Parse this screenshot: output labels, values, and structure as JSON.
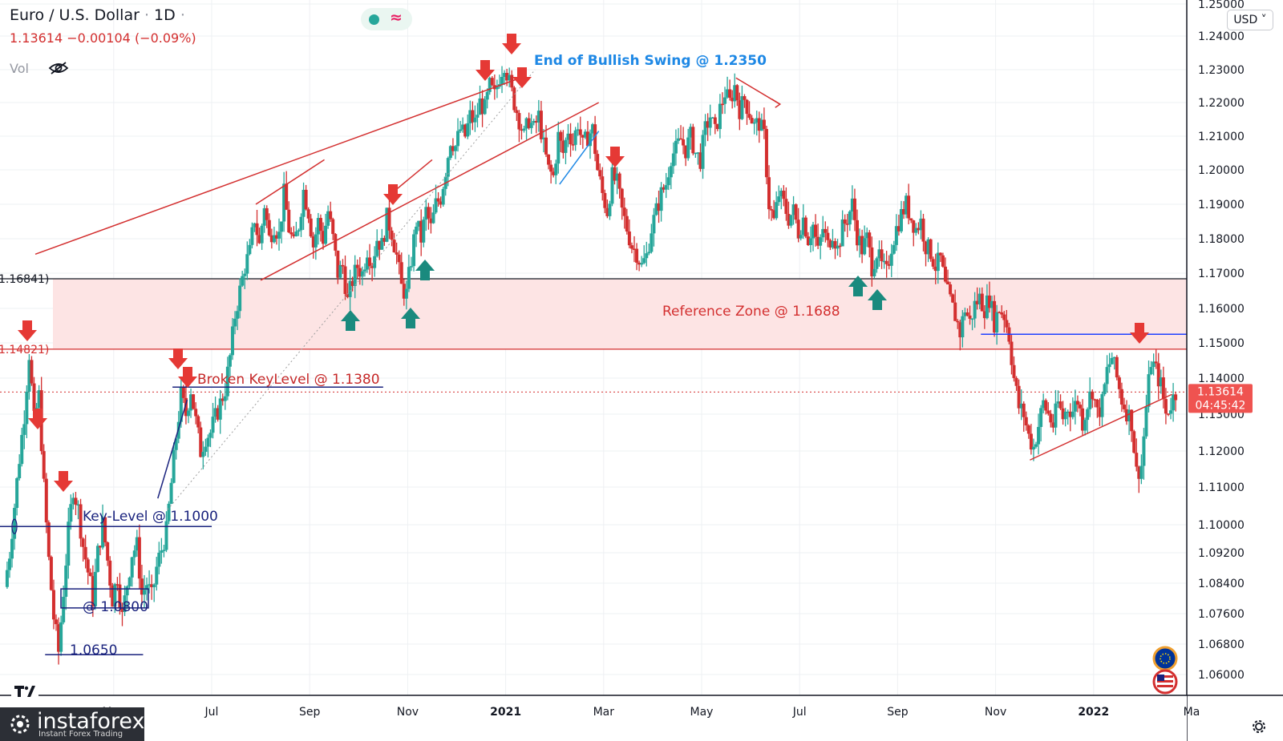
{
  "header": {
    "symbol": "Euro / U.S. Dollar",
    "sep": "·",
    "interval": "1D",
    "last": "1.13614",
    "change": "−0.00104",
    "change_pct": "(−0.09%)",
    "vol_label": "Vol"
  },
  "currency_button": "USD",
  "price_tag": {
    "value": "1.13614",
    "timer": "04:45:42"
  },
  "level_tags": [
    {
      "label": "1.16841)",
      "price": 1.16841
    },
    {
      "label": "1.14821)",
      "price": 1.14821
    }
  ],
  "annotations": {
    "end_bullish": "End of Bullish Swing @ 1.2350",
    "reference_zone": "Reference Zone @ 1.1688",
    "broken_key": "Broken KeyLevel @ 1.1380",
    "key_level": "Key-Level @ 1.1000",
    "box_level": "@ 1.0800",
    "low_level": "1.0650"
  },
  "logo": {
    "name": "instaforex",
    "tagline": "Instant Forex Trading"
  },
  "colors": {
    "up": "#26a69a",
    "down": "#d32f2f",
    "arrow_down": "#e53935",
    "arrow_up": "#1a8a7e",
    "zone_fill": "#fde4e4",
    "navy": "#1a237e",
    "blue_line": "#1e40ff",
    "annotation_blue": "#1e88e5"
  },
  "chart_data": {
    "type": "candlestick",
    "instrument": "EURUSD",
    "y_axis_labels": [
      "1.25000",
      "1.24000",
      "1.23000",
      "1.22000",
      "1.21000",
      "1.20000",
      "1.19000",
      "1.18000",
      "1.17000",
      "1.16000",
      "1.15000",
      "1.14000",
      "1.13000",
      "1.12000",
      "1.11000",
      "1.10000",
      "1.09200",
      "1.08400",
      "1.07600",
      "1.06800",
      "1.06000"
    ],
    "y_axis_values": [
      1.25,
      1.24,
      1.23,
      1.22,
      1.21,
      1.2,
      1.19,
      1.18,
      1.17,
      1.16,
      1.15,
      1.14,
      1.13,
      1.12,
      1.11,
      1.1,
      1.092,
      1.084,
      1.076,
      1.068,
      1.06
    ],
    "x_axis_labels": [
      "May",
      "Jul",
      "Sep",
      "Nov",
      "2021",
      "Mar",
      "May",
      "Jul",
      "Sep",
      "Nov",
      "2022",
      "Ma"
    ],
    "x_axis_months": [
      -2,
      0,
      2,
      4,
      6,
      8,
      10,
      12,
      14,
      16,
      18,
      20
    ],
    "x_axis_bold": [
      false,
      false,
      false,
      false,
      true,
      false,
      false,
      false,
      false,
      false,
      true,
      false
    ],
    "month_index_note": "month offset where 0 = Jul 2020",
    "price_path": [
      [
        -4.2,
        1.083
      ],
      [
        -4.1,
        1.092
      ],
      [
        -4.0,
        1.105
      ],
      [
        -3.9,
        1.118
      ],
      [
        -3.8,
        1.13
      ],
      [
        -3.7,
        1.147
      ],
      [
        -3.6,
        1.128
      ],
      [
        -3.5,
        1.135
      ],
      [
        -3.4,
        1.11
      ],
      [
        -3.3,
        1.09
      ],
      [
        -3.2,
        1.075
      ],
      [
        -3.1,
        1.066
      ],
      [
        -3.0,
        1.082
      ],
      [
        -2.9,
        1.098
      ],
      [
        -2.8,
        1.11
      ],
      [
        -2.7,
        1.104
      ],
      [
        -2.6,
        1.094
      ],
      [
        -2.5,
        1.087
      ],
      [
        -2.4,
        1.08
      ],
      [
        -2.3,
        1.092
      ],
      [
        -2.2,
        1.1
      ],
      [
        -2.1,
        1.09
      ],
      [
        -2.0,
        1.08
      ],
      [
        -1.9,
        1.086
      ],
      [
        -1.8,
        1.075
      ],
      [
        -1.7,
        1.084
      ],
      [
        -1.6,
        1.092
      ],
      [
        -1.5,
        1.094
      ],
      [
        -1.4,
        1.081
      ],
      [
        -1.3,
        1.084
      ],
      [
        -1.2,
        1.08
      ],
      [
        -1.1,
        1.088
      ],
      [
        -1.0,
        1.093
      ],
      [
        -0.9,
        1.098
      ],
      [
        -0.8,
        1.111
      ],
      [
        -0.7,
        1.124
      ],
      [
        -0.6,
        1.135
      ],
      [
        -0.5,
        1.13
      ],
      [
        -0.4,
        1.137
      ],
      [
        -0.3,
        1.128
      ],
      [
        -0.2,
        1.12
      ],
      [
        -0.1,
        1.124
      ],
      [
        0.0,
        1.125
      ],
      [
        0.1,
        1.129
      ],
      [
        0.2,
        1.133
      ],
      [
        0.3,
        1.137
      ],
      [
        0.4,
        1.146
      ],
      [
        0.5,
        1.158
      ],
      [
        0.6,
        1.165
      ],
      [
        0.7,
        1.172
      ],
      [
        0.8,
        1.176
      ],
      [
        0.9,
        1.186
      ],
      [
        1.0,
        1.178
      ],
      [
        1.1,
        1.19
      ],
      [
        1.2,
        1.18
      ],
      [
        1.3,
        1.184
      ],
      [
        1.4,
        1.181
      ],
      [
        1.5,
        1.193
      ],
      [
        1.6,
        1.183
      ],
      [
        1.7,
        1.178
      ],
      [
        1.8,
        1.184
      ],
      [
        1.9,
        1.194
      ],
      [
        2.0,
        1.188
      ],
      [
        2.1,
        1.178
      ],
      [
        2.2,
        1.185
      ],
      [
        2.3,
        1.18
      ],
      [
        2.4,
        1.188
      ],
      [
        2.5,
        1.18
      ],
      [
        2.6,
        1.17
      ],
      [
        2.7,
        1.172
      ],
      [
        2.8,
        1.162
      ],
      [
        2.9,
        1.168
      ],
      [
        3.0,
        1.172
      ],
      [
        3.1,
        1.17
      ],
      [
        3.2,
        1.177
      ],
      [
        3.3,
        1.173
      ],
      [
        3.4,
        1.18
      ],
      [
        3.5,
        1.178
      ],
      [
        3.6,
        1.186
      ],
      [
        3.7,
        1.182
      ],
      [
        3.8,
        1.175
      ],
      [
        3.9,
        1.166
      ],
      [
        4.0,
        1.164
      ],
      [
        4.1,
        1.174
      ],
      [
        4.2,
        1.185
      ],
      [
        4.3,
        1.18
      ],
      [
        4.4,
        1.188
      ],
      [
        4.5,
        1.183
      ],
      [
        4.6,
        1.19
      ],
      [
        4.7,
        1.192
      ],
      [
        4.8,
        1.2
      ],
      [
        4.9,
        1.209
      ],
      [
        5.0,
        1.207
      ],
      [
        5.1,
        1.212
      ],
      [
        5.2,
        1.21
      ],
      [
        5.3,
        1.216
      ],
      [
        5.4,
        1.214
      ],
      [
        5.5,
        1.22
      ],
      [
        5.6,
        1.218
      ],
      [
        5.7,
        1.225
      ],
      [
        5.8,
        1.222
      ],
      [
        5.9,
        1.228
      ],
      [
        6.0,
        1.232
      ],
      [
        6.1,
        1.226
      ],
      [
        6.2,
        1.22
      ],
      [
        6.3,
        1.215
      ],
      [
        6.4,
        1.21
      ],
      [
        6.5,
        1.215
      ],
      [
        6.6,
        1.212
      ],
      [
        6.7,
        1.216
      ],
      [
        6.8,
        1.207
      ],
      [
        6.9,
        1.2
      ],
      [
        7.0,
        1.198
      ],
      [
        7.1,
        1.21
      ],
      [
        7.2,
        1.205
      ],
      [
        7.3,
        1.212
      ],
      [
        7.4,
        1.208
      ],
      [
        7.5,
        1.214
      ],
      [
        7.6,
        1.207
      ],
      [
        7.7,
        1.21
      ],
      [
        7.8,
        1.212
      ],
      [
        7.9,
        1.2
      ],
      [
        8.0,
        1.193
      ],
      [
        8.1,
        1.188
      ],
      [
        8.2,
        1.198
      ],
      [
        8.3,
        1.196
      ],
      [
        8.4,
        1.188
      ],
      [
        8.5,
        1.183
      ],
      [
        8.6,
        1.178
      ],
      [
        8.7,
        1.176
      ],
      [
        8.8,
        1.172
      ],
      [
        8.9,
        1.175
      ],
      [
        9.0,
        1.183
      ],
      [
        9.1,
        1.188
      ],
      [
        9.2,
        1.193
      ],
      [
        9.3,
        1.196
      ],
      [
        9.4,
        1.204
      ],
      [
        9.5,
        1.206
      ],
      [
        9.6,
        1.209
      ],
      [
        9.7,
        1.206
      ],
      [
        9.8,
        1.21
      ],
      [
        9.9,
        1.205
      ],
      [
        10.0,
        1.203
      ],
      [
        10.1,
        1.212
      ],
      [
        10.2,
        1.216
      ],
      [
        10.3,
        1.211
      ],
      [
        10.4,
        1.218
      ],
      [
        10.5,
        1.223
      ],
      [
        10.6,
        1.22
      ],
      [
        10.7,
        1.225
      ],
      [
        10.8,
        1.218
      ],
      [
        10.9,
        1.221
      ],
      [
        11.0,
        1.217
      ],
      [
        11.1,
        1.213
      ],
      [
        11.2,
        1.214
      ],
      [
        11.3,
        1.21
      ],
      [
        11.4,
        1.19
      ],
      [
        11.5,
        1.185
      ],
      [
        11.6,
        1.193
      ],
      [
        11.7,
        1.19
      ],
      [
        11.8,
        1.186
      ],
      [
        11.9,
        1.188
      ],
      [
        12.0,
        1.182
      ],
      [
        12.1,
        1.186
      ],
      [
        12.2,
        1.18
      ],
      [
        12.3,
        1.184
      ],
      [
        12.4,
        1.176
      ],
      [
        12.5,
        1.183
      ],
      [
        12.6,
        1.178
      ],
      [
        12.7,
        1.182
      ],
      [
        12.8,
        1.177
      ],
      [
        12.9,
        1.183
      ],
      [
        13.0,
        1.186
      ],
      [
        13.1,
        1.19
      ],
      [
        13.2,
        1.181
      ],
      [
        13.3,
        1.177
      ],
      [
        13.4,
        1.18
      ],
      [
        13.5,
        1.172
      ],
      [
        13.6,
        1.176
      ],
      [
        13.7,
        1.172
      ],
      [
        13.8,
        1.17
      ],
      [
        13.9,
        1.178
      ],
      [
        14.0,
        1.183
      ],
      [
        14.1,
        1.187
      ],
      [
        14.2,
        1.19
      ],
      [
        14.3,
        1.186
      ],
      [
        14.4,
        1.183
      ],
      [
        14.5,
        1.185
      ],
      [
        14.6,
        1.178
      ],
      [
        14.7,
        1.176
      ],
      [
        14.8,
        1.172
      ],
      [
        14.9,
        1.174
      ],
      [
        15.0,
        1.166
      ],
      [
        15.1,
        1.162
      ],
      [
        15.2,
        1.158
      ],
      [
        15.3,
        1.153
      ],
      [
        15.4,
        1.16
      ],
      [
        15.5,
        1.156
      ],
      [
        15.6,
        1.161
      ],
      [
        15.7,
        1.163
      ],
      [
        15.8,
        1.16
      ],
      [
        15.9,
        1.163
      ],
      [
        16.0,
        1.156
      ],
      [
        16.1,
        1.16
      ],
      [
        16.2,
        1.158
      ],
      [
        16.3,
        1.152
      ],
      [
        16.4,
        1.14
      ],
      [
        16.5,
        1.132
      ],
      [
        16.6,
        1.13
      ],
      [
        16.7,
        1.124
      ],
      [
        16.8,
        1.121
      ],
      [
        16.9,
        1.127
      ],
      [
        17.0,
        1.133
      ],
      [
        17.1,
        1.13
      ],
      [
        17.2,
        1.127
      ],
      [
        17.3,
        1.133
      ],
      [
        17.4,
        1.129
      ],
      [
        17.5,
        1.132
      ],
      [
        17.6,
        1.131
      ],
      [
        17.7,
        1.134
      ],
      [
        17.8,
        1.128
      ],
      [
        17.9,
        1.133
      ],
      [
        18.0,
        1.137
      ],
      [
        18.1,
        1.13
      ],
      [
        18.2,
        1.133
      ],
      [
        18.3,
        1.142
      ],
      [
        18.4,
        1.146
      ],
      [
        18.5,
        1.14
      ],
      [
        18.6,
        1.134
      ],
      [
        18.7,
        1.131
      ],
      [
        18.8,
        1.128
      ],
      [
        18.9,
        1.114
      ],
      [
        19.0,
        1.116
      ],
      [
        19.1,
        1.132
      ],
      [
        19.2,
        1.145
      ],
      [
        19.3,
        1.142
      ],
      [
        19.4,
        1.138
      ],
      [
        19.5,
        1.13
      ],
      [
        19.6,
        1.133
      ],
      [
        19.7,
        1.136
      ]
    ]
  }
}
